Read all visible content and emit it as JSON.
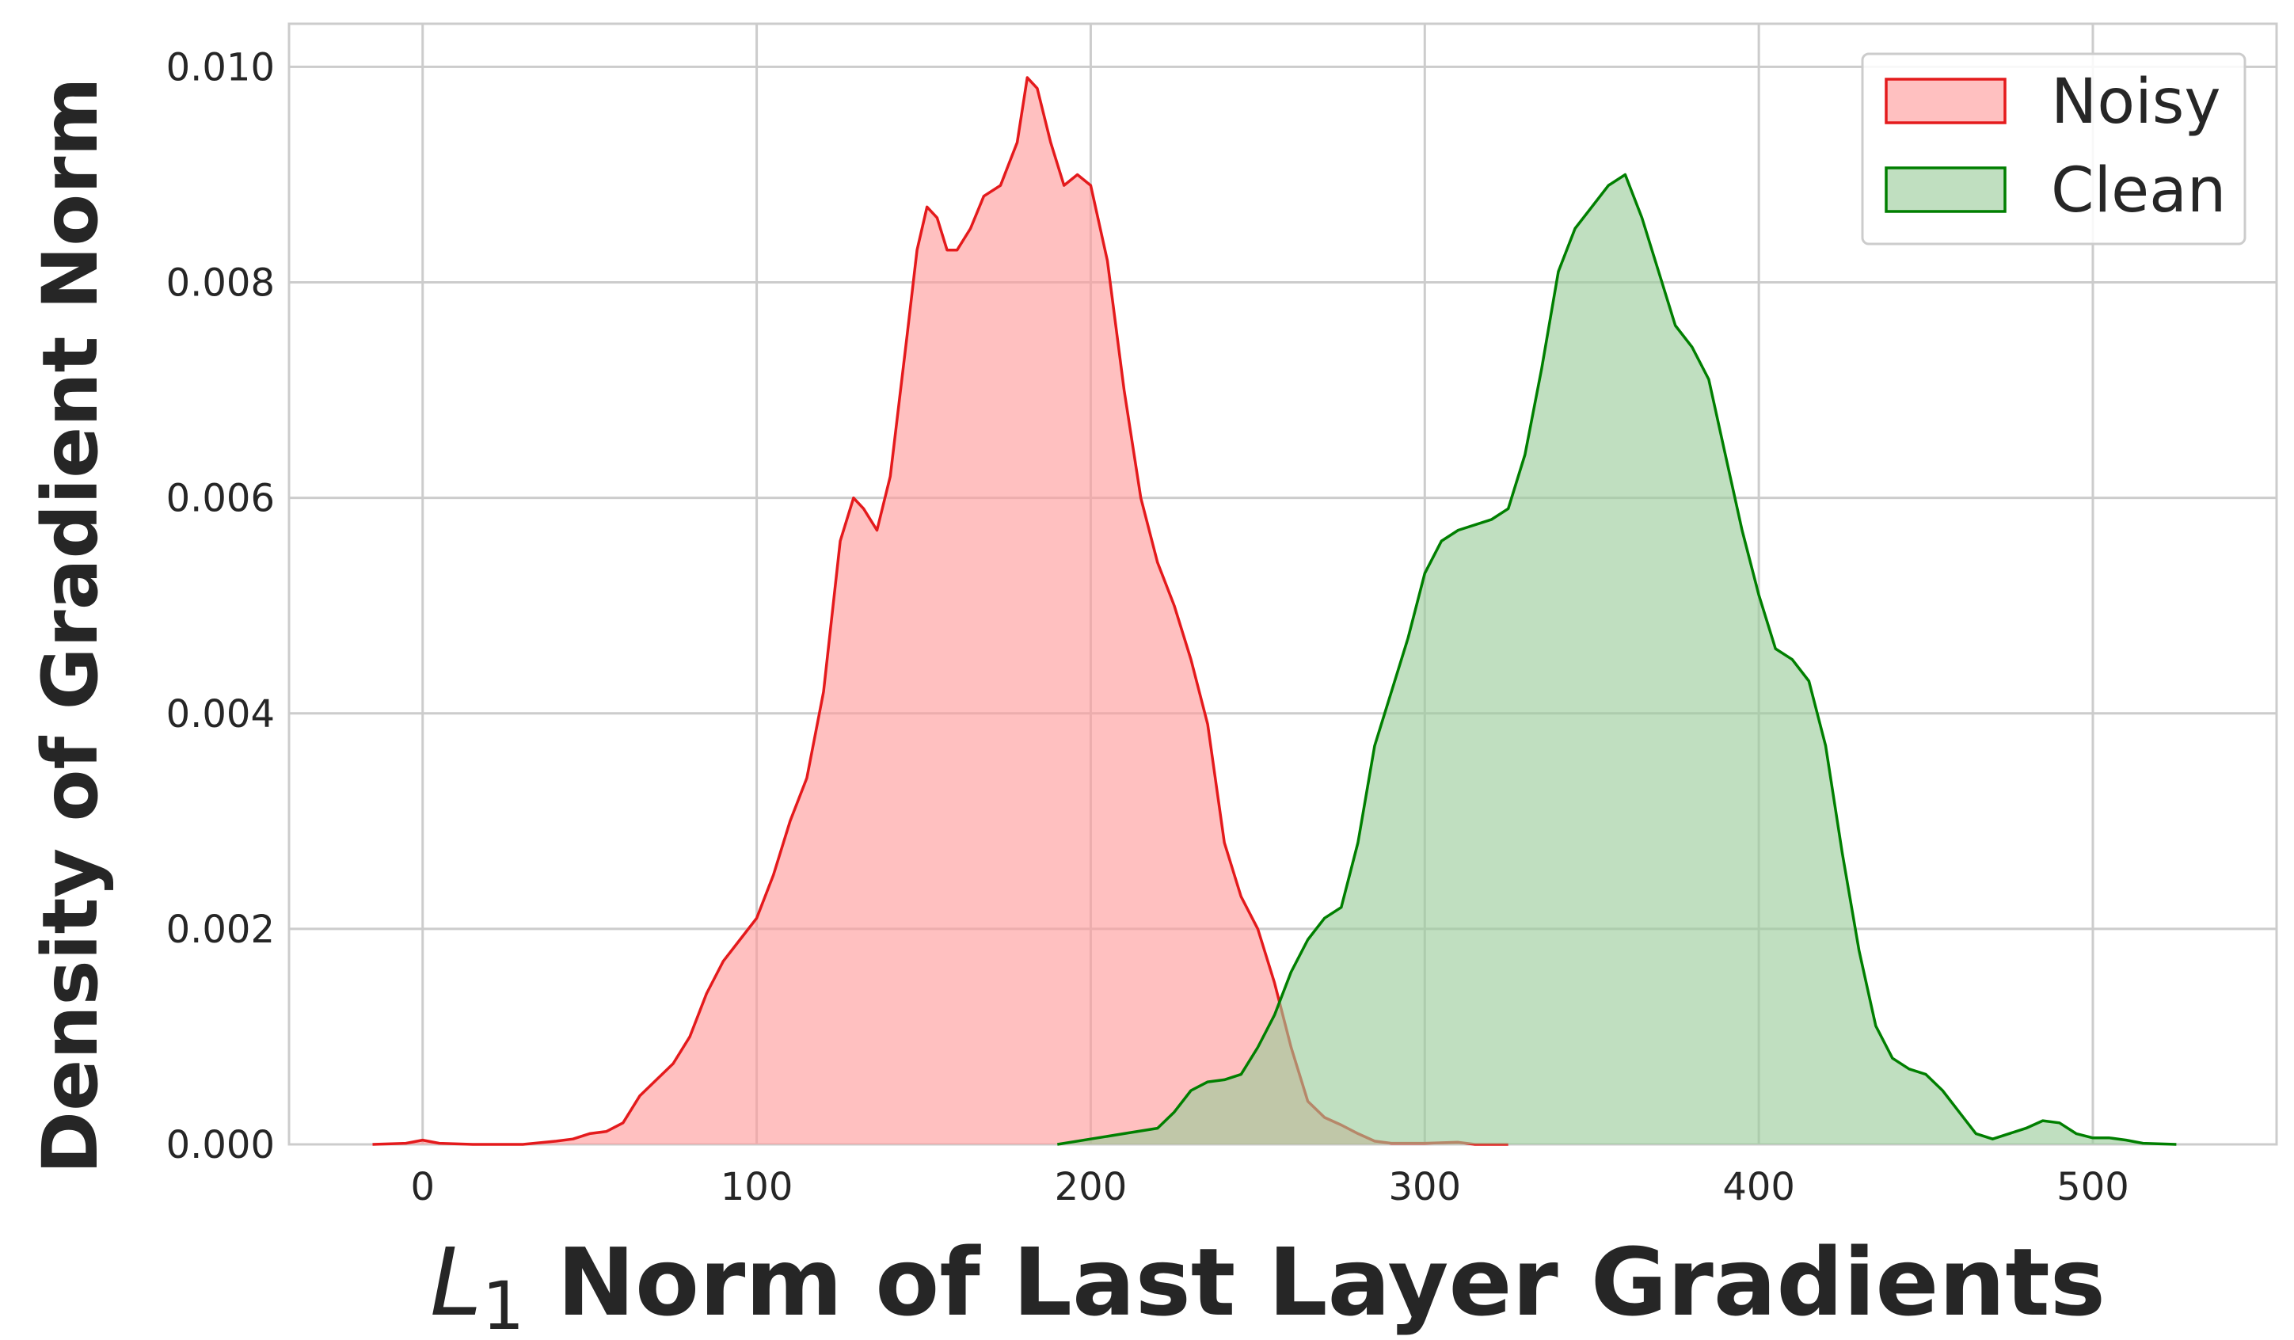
{
  "chart_data": {
    "type": "area",
    "xlabel_symbol": "L",
    "xlabel_subscript": "1",
    "xlabel_rest": " Norm of Last Layer Gradients",
    "ylabel": "Density of Gradient Norm",
    "xlim": [
      -40,
      555
    ],
    "ylim": [
      0,
      0.0104
    ],
    "x_ticks": [
      0,
      100,
      200,
      300,
      400,
      500
    ],
    "x_tick_labels": [
      "0",
      "100",
      "200",
      "300",
      "400",
      "500"
    ],
    "y_ticks": [
      0,
      0.002,
      0.004,
      0.006,
      0.008,
      0.01
    ],
    "y_tick_labels": [
      "0.000",
      "0.002",
      "0.004",
      "0.006",
      "0.008",
      "0.010"
    ],
    "grid": true,
    "legend_position": "top-right",
    "series": [
      {
        "name": "Noisy",
        "line_color": "#e41a1c",
        "fill_color": "#ff9999",
        "points": [
          [
            -15,
            0
          ],
          [
            -5,
            1e-05
          ],
          [
            0,
            4e-05
          ],
          [
            5,
            1e-05
          ],
          [
            15,
            0
          ],
          [
            30,
            0
          ],
          [
            40,
            3e-05
          ],
          [
            45,
            5e-05
          ],
          [
            50,
            0.0001
          ],
          [
            55,
            0.00012
          ],
          [
            60,
            0.0002
          ],
          [
            65,
            0.00045
          ],
          [
            70,
            0.0006
          ],
          [
            75,
            0.00075
          ],
          [
            80,
            0.001
          ],
          [
            85,
            0.0014
          ],
          [
            90,
            0.0017
          ],
          [
            95,
            0.0019
          ],
          [
            100,
            0.0021
          ],
          [
            105,
            0.0025
          ],
          [
            110,
            0.003
          ],
          [
            115,
            0.0034
          ],
          [
            120,
            0.0042
          ],
          [
            125,
            0.0056
          ],
          [
            129,
            0.006
          ],
          [
            132,
            0.0059
          ],
          [
            136,
            0.0057
          ],
          [
            140,
            0.0062
          ],
          [
            145,
            0.0075
          ],
          [
            148,
            0.0083
          ],
          [
            151,
            0.0087
          ],
          [
            154,
            0.0086
          ],
          [
            157,
            0.0083
          ],
          [
            160,
            0.0083
          ],
          [
            164,
            0.0085
          ],
          [
            168,
            0.0088
          ],
          [
            173,
            0.0089
          ],
          [
            178,
            0.0093
          ],
          [
            181,
            0.0099
          ],
          [
            184,
            0.0098
          ],
          [
            188,
            0.0093
          ],
          [
            192,
            0.0089
          ],
          [
            196,
            0.009
          ],
          [
            200,
            0.0089
          ],
          [
            205,
            0.0082
          ],
          [
            210,
            0.007
          ],
          [
            215,
            0.006
          ],
          [
            220,
            0.0054
          ],
          [
            225,
            0.005
          ],
          [
            230,
            0.0045
          ],
          [
            235,
            0.0039
          ],
          [
            240,
            0.0028
          ],
          [
            245,
            0.0023
          ],
          [
            250,
            0.002
          ],
          [
            255,
            0.0015
          ],
          [
            260,
            0.0009
          ],
          [
            265,
            0.0004
          ],
          [
            270,
            0.00025
          ],
          [
            275,
            0.00018
          ],
          [
            280,
            0.0001
          ],
          [
            285,
            3e-05
          ],
          [
            290,
            1e-05
          ],
          [
            300,
            1e-05
          ],
          [
            310,
            2e-05
          ],
          [
            315,
            0
          ],
          [
            325,
            0
          ]
        ]
      },
      {
        "name": "Clean",
        "line_color": "#007f00",
        "fill_color": "#99cc99",
        "points": [
          [
            190,
            0
          ],
          [
            200,
            5e-05
          ],
          [
            210,
            0.0001
          ],
          [
            220,
            0.00015
          ],
          [
            225,
            0.0003
          ],
          [
            230,
            0.0005
          ],
          [
            235,
            0.00058
          ],
          [
            240,
            0.0006
          ],
          [
            245,
            0.00065
          ],
          [
            250,
            0.0009
          ],
          [
            255,
            0.0012
          ],
          [
            260,
            0.0016
          ],
          [
            265,
            0.0019
          ],
          [
            270,
            0.0021
          ],
          [
            275,
            0.0022
          ],
          [
            280,
            0.0028
          ],
          [
            285,
            0.0037
          ],
          [
            290,
            0.0042
          ],
          [
            295,
            0.0047
          ],
          [
            300,
            0.0053
          ],
          [
            305,
            0.0056
          ],
          [
            310,
            0.0057
          ],
          [
            320,
            0.0058
          ],
          [
            325,
            0.0059
          ],
          [
            330,
            0.0064
          ],
          [
            335,
            0.0072
          ],
          [
            340,
            0.0081
          ],
          [
            345,
            0.0085
          ],
          [
            350,
            0.0087
          ],
          [
            355,
            0.0089
          ],
          [
            360,
            0.009
          ],
          [
            365,
            0.0086
          ],
          [
            370,
            0.0081
          ],
          [
            375,
            0.0076
          ],
          [
            380,
            0.0074
          ],
          [
            385,
            0.0071
          ],
          [
            390,
            0.0064
          ],
          [
            395,
            0.0057
          ],
          [
            400,
            0.0051
          ],
          [
            405,
            0.0046
          ],
          [
            410,
            0.0045
          ],
          [
            415,
            0.0043
          ],
          [
            420,
            0.0037
          ],
          [
            425,
            0.0027
          ],
          [
            430,
            0.0018
          ],
          [
            435,
            0.0011
          ],
          [
            440,
            0.0008
          ],
          [
            445,
            0.0007
          ],
          [
            450,
            0.00065
          ],
          [
            455,
            0.0005
          ],
          [
            460,
            0.0003
          ],
          [
            465,
            0.0001
          ],
          [
            470,
            5e-05
          ],
          [
            480,
            0.00015
          ],
          [
            485,
            0.00022
          ],
          [
            490,
            0.0002
          ],
          [
            495,
            0.0001
          ],
          [
            500,
            6e-05
          ],
          [
            505,
            6e-05
          ],
          [
            510,
            4e-05
          ],
          [
            515,
            1e-05
          ],
          [
            525,
            0
          ]
        ]
      }
    ]
  }
}
